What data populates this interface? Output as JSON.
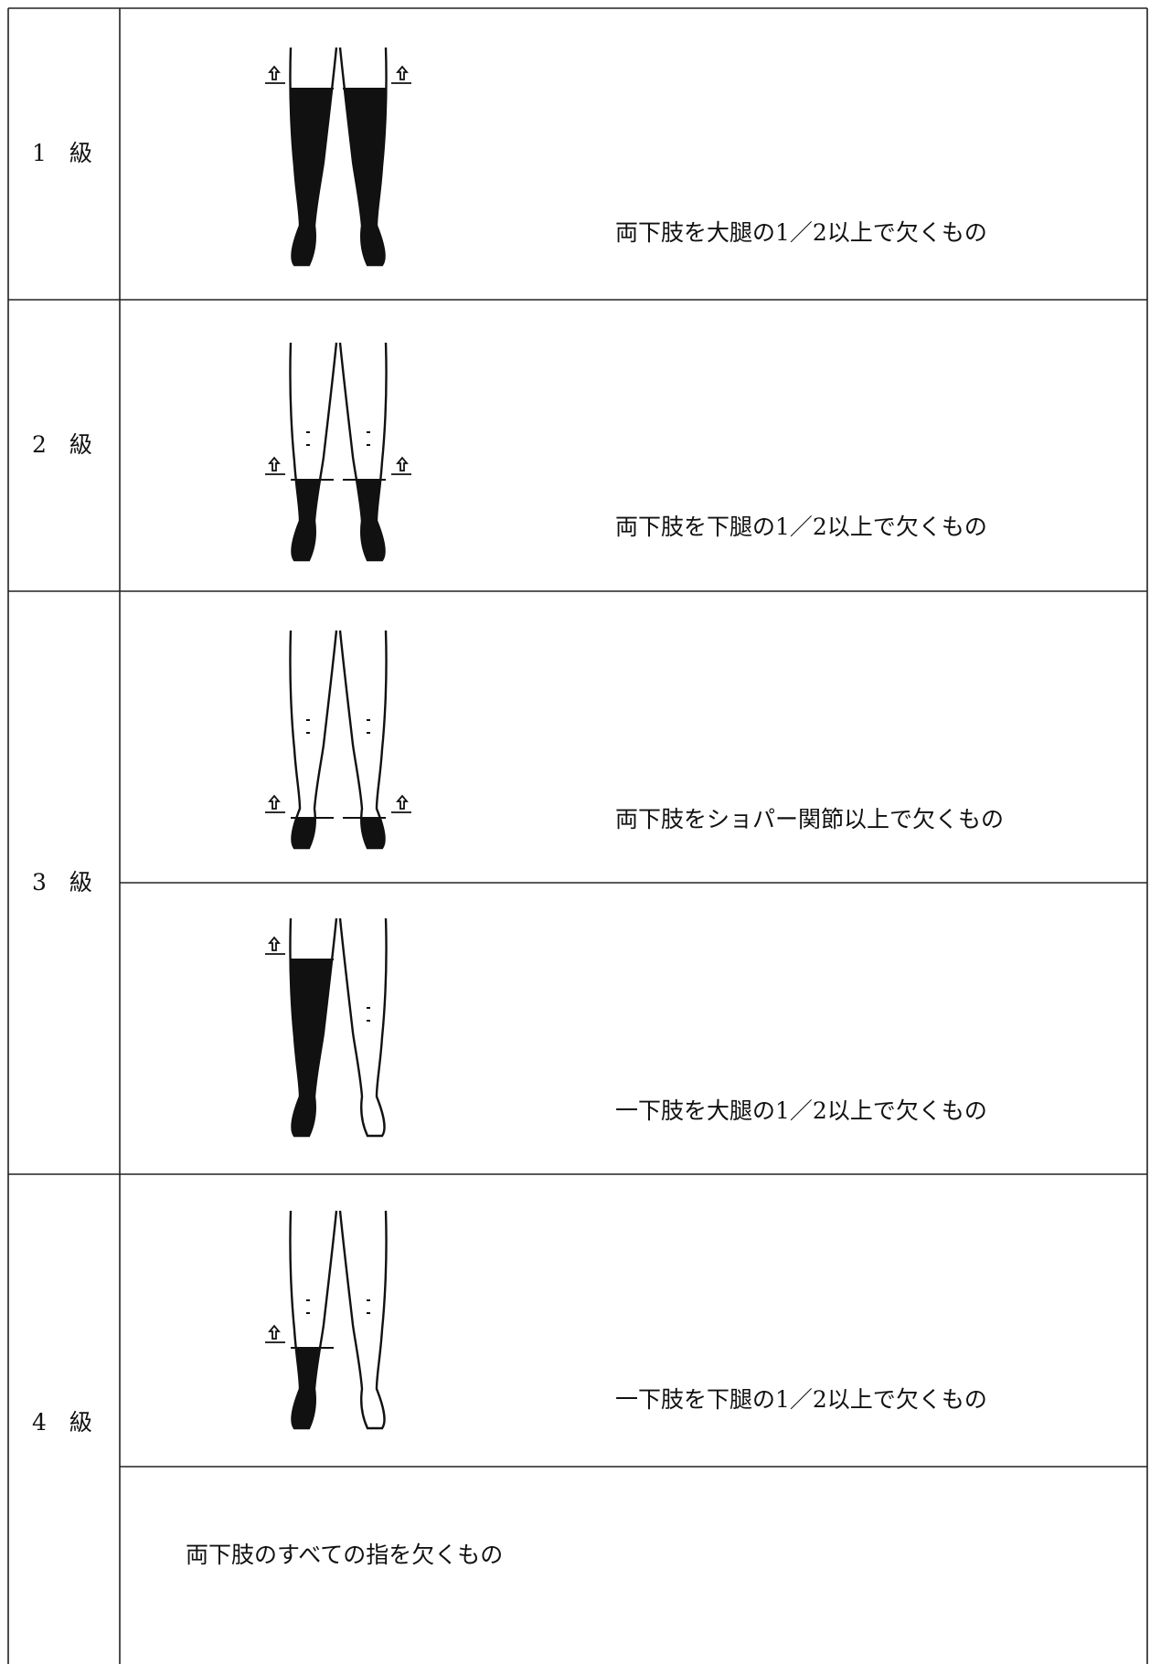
{
  "table": {
    "rows": [
      {
        "grade": "1　級",
        "descriptions": [
          "両下肢を大腿の1／2以上で欠くもの"
        ]
      },
      {
        "grade": "2　級",
        "descriptions": [
          "両下肢を下腿の1／2以上で欠くもの"
        ]
      },
      {
        "grade": "3　級",
        "descriptions": [
          "両下肢をショパー関節以上で欠くもの",
          "一下肢を大腿の1／2以上で欠くもの"
        ]
      },
      {
        "grade": "4　級",
        "descriptions": [
          "一下肢を下腿の1／2以上で欠くもの",
          "両下肢のすべての指を欠くもの"
        ]
      }
    ]
  }
}
